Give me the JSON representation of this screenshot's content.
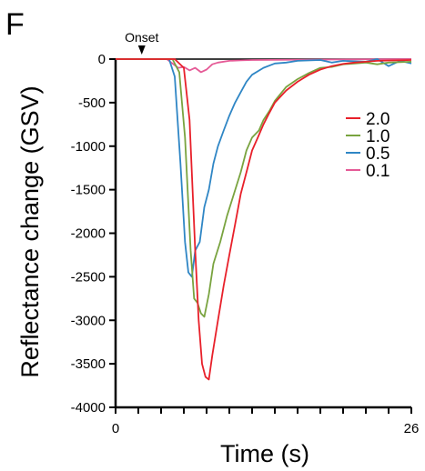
{
  "panel_letter": "F",
  "annotation": {
    "text": "Onset",
    "x": 2.3
  },
  "chart_data": {
    "type": "line",
    "xlabel": "Time (s)",
    "ylabel": "Reflectance change (GSV)",
    "xlim": [
      0,
      26
    ],
    "ylim": [
      -4000,
      0
    ],
    "x_ticks_labeled": [
      "0",
      "26"
    ],
    "y_ticks": [
      0,
      -500,
      -1000,
      -1500,
      -2000,
      -2500,
      -3000,
      -3500,
      -4000
    ],
    "legend_position": "right",
    "series": [
      {
        "name": "2.0",
        "color": "#e8202a",
        "points": [
          [
            0,
            0
          ],
          [
            5.2,
            0
          ],
          [
            6,
            -100
          ],
          [
            6.5,
            -700
          ],
          [
            7,
            -2200
          ],
          [
            7.3,
            -3000
          ],
          [
            7.6,
            -3500
          ],
          [
            7.9,
            -3650
          ],
          [
            8.2,
            -3680
          ],
          [
            8.5,
            -3400
          ],
          [
            9,
            -3000
          ],
          [
            9.5,
            -2600
          ],
          [
            10,
            -2250
          ],
          [
            10.5,
            -1900
          ],
          [
            11,
            -1550
          ],
          [
            11.5,
            -1300
          ],
          [
            12,
            -1050
          ],
          [
            12.5,
            -900
          ],
          [
            13,
            -750
          ],
          [
            13.5,
            -620
          ],
          [
            14,
            -500
          ],
          [
            15,
            -360
          ],
          [
            16,
            -260
          ],
          [
            17,
            -180
          ],
          [
            18,
            -120
          ],
          [
            19,
            -80
          ],
          [
            20,
            -55
          ],
          [
            21,
            -40
          ],
          [
            22,
            -30
          ],
          [
            23,
            -20
          ],
          [
            26,
            -10
          ]
        ]
      },
      {
        "name": "1.0",
        "color": "#79a33f",
        "points": [
          [
            0,
            0
          ],
          [
            5,
            0
          ],
          [
            5.6,
            -150
          ],
          [
            6.1,
            -900
          ],
          [
            6.6,
            -2200
          ],
          [
            6.9,
            -2750
          ],
          [
            7.2,
            -2800
          ],
          [
            7.5,
            -2920
          ],
          [
            7.8,
            -2960
          ],
          [
            8.2,
            -2700
          ],
          [
            8.6,
            -2350
          ],
          [
            9.2,
            -2100
          ],
          [
            9.8,
            -1800
          ],
          [
            10.4,
            -1550
          ],
          [
            11,
            -1300
          ],
          [
            11.5,
            -1050
          ],
          [
            12,
            -900
          ],
          [
            12.6,
            -820
          ],
          [
            13,
            -700
          ],
          [
            13.5,
            -600
          ],
          [
            14,
            -480
          ],
          [
            15,
            -320
          ],
          [
            16,
            -230
          ],
          [
            17,
            -160
          ],
          [
            18,
            -100
          ],
          [
            19,
            -90
          ],
          [
            20,
            -60
          ],
          [
            21,
            -50
          ],
          [
            22,
            -40
          ],
          [
            23,
            -60
          ],
          [
            24,
            -40
          ],
          [
            26,
            -30
          ]
        ]
      },
      {
        "name": "0.5",
        "color": "#2f86c5",
        "points": [
          [
            0,
            0
          ],
          [
            4.7,
            0
          ],
          [
            5.2,
            -200
          ],
          [
            5.7,
            -1200
          ],
          [
            6.1,
            -2100
          ],
          [
            6.4,
            -2450
          ],
          [
            6.7,
            -2500
          ],
          [
            7,
            -2200
          ],
          [
            7.4,
            -2100
          ],
          [
            7.8,
            -1700
          ],
          [
            8.2,
            -1500
          ],
          [
            8.6,
            -1200
          ],
          [
            9,
            -1000
          ],
          [
            9.5,
            -820
          ],
          [
            10,
            -650
          ],
          [
            10.5,
            -500
          ],
          [
            11,
            -380
          ],
          [
            11.5,
            -260
          ],
          [
            12,
            -180
          ],
          [
            13,
            -100
          ],
          [
            14,
            -50
          ],
          [
            15,
            -40
          ],
          [
            16,
            -20
          ],
          [
            18,
            -10
          ],
          [
            19,
            -40
          ],
          [
            20,
            -20
          ],
          [
            22,
            -30
          ],
          [
            23,
            0
          ],
          [
            24,
            -80
          ],
          [
            25,
            -20
          ],
          [
            26,
            -50
          ]
        ]
      },
      {
        "name": "0.1",
        "color": "#e55a96",
        "points": [
          [
            0,
            0
          ],
          [
            4.5,
            0
          ],
          [
            5,
            -50
          ],
          [
            5.5,
            -100
          ],
          [
            6,
            -90
          ],
          [
            6.5,
            -130
          ],
          [
            7,
            -100
          ],
          [
            7.5,
            -150
          ],
          [
            8,
            -120
          ],
          [
            8.5,
            -60
          ],
          [
            9,
            -40
          ],
          [
            10,
            -20
          ],
          [
            11,
            -15
          ],
          [
            12,
            -10
          ],
          [
            26,
            0
          ]
        ]
      }
    ]
  }
}
